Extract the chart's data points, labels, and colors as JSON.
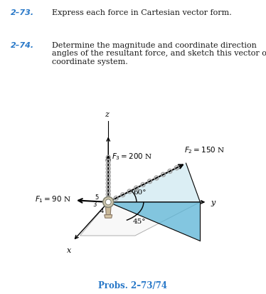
{
  "bg_color": "#ffffff",
  "title_color": "#2878c8",
  "text_color": "#1a1a1a",
  "line_color": "#000000",
  "fill_color_light": "#cce8f0",
  "fill_color_blue": "#5ab4d6",
  "problem_273": "2–73.",
  "problem_274": "2–74.",
  "text_273": "Express each force in Cartesian vector form.",
  "text_274": "Determine the magnitude and coordinate direction\nangles of the resultant force, and sketch this vector on the\ncoordinate system.",
  "probs_label": "Probs. 2–73/74",
  "F1_label": "$F_1 = 90$ N",
  "F2_label": "$F_2 = 150$ N",
  "F3_label": "$F_3 = 200$ N",
  "angle1": "60°",
  "angle2": "45°",
  "x_label": "x",
  "y_label": "y",
  "z_label": "z",
  "chain_color": "#a0a0a0",
  "figsize": [
    3.74,
    4.14
  ],
  "dpi": 100
}
